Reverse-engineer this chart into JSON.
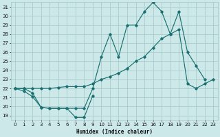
{
  "xlabel": "Humidex (Indice chaleur)",
  "bg_color": "#cce8e8",
  "grid_color": "#aacccc",
  "line_color": "#1a7070",
  "xlim": [
    -0.5,
    23.5
  ],
  "ylim": [
    18.5,
    31.5
  ],
  "xticks": [
    0,
    1,
    2,
    3,
    4,
    5,
    6,
    7,
    8,
    9,
    10,
    11,
    12,
    13,
    14,
    15,
    16,
    17,
    18,
    19,
    20,
    21,
    22,
    23
  ],
  "yticks": [
    19,
    20,
    21,
    22,
    23,
    24,
    25,
    26,
    27,
    28,
    29,
    30,
    31
  ],
  "series": [
    {
      "x": [
        0,
        1,
        2,
        3,
        4,
        5,
        6,
        7,
        8,
        9
      ],
      "y": [
        22.0,
        21.7,
        21.1,
        19.9,
        19.8,
        19.8,
        19.8,
        18.8,
        18.8,
        21.2
      ]
    },
    {
      "x": [
        0,
        1,
        2,
        3,
        4,
        5,
        6,
        7,
        8,
        9,
        10,
        11,
        12,
        13,
        14,
        15,
        16,
        17,
        18,
        19,
        20,
        21,
        22
      ],
      "y": [
        22.0,
        22.0,
        21.5,
        19.9,
        19.8,
        19.8,
        19.8,
        19.8,
        19.8,
        22.0,
        25.5,
        28.0,
        25.5,
        29.0,
        29.0,
        30.5,
        31.5,
        30.5,
        28.0,
        30.5,
        26.0,
        24.5,
        23.0
      ]
    },
    {
      "x": [
        0,
        1,
        2,
        3,
        4,
        5,
        6,
        7,
        8,
        9,
        10,
        11,
        12,
        13,
        14,
        15,
        16,
        17,
        18,
        19,
        20,
        21,
        22,
        23
      ],
      "y": [
        22.0,
        22.0,
        22.0,
        22.0,
        22.0,
        22.1,
        22.2,
        22.2,
        22.2,
        22.5,
        23.0,
        23.3,
        23.7,
        24.2,
        25.0,
        25.5,
        26.5,
        27.5,
        28.0,
        28.5,
        22.5,
        22.0,
        22.5,
        23.0
      ]
    }
  ]
}
